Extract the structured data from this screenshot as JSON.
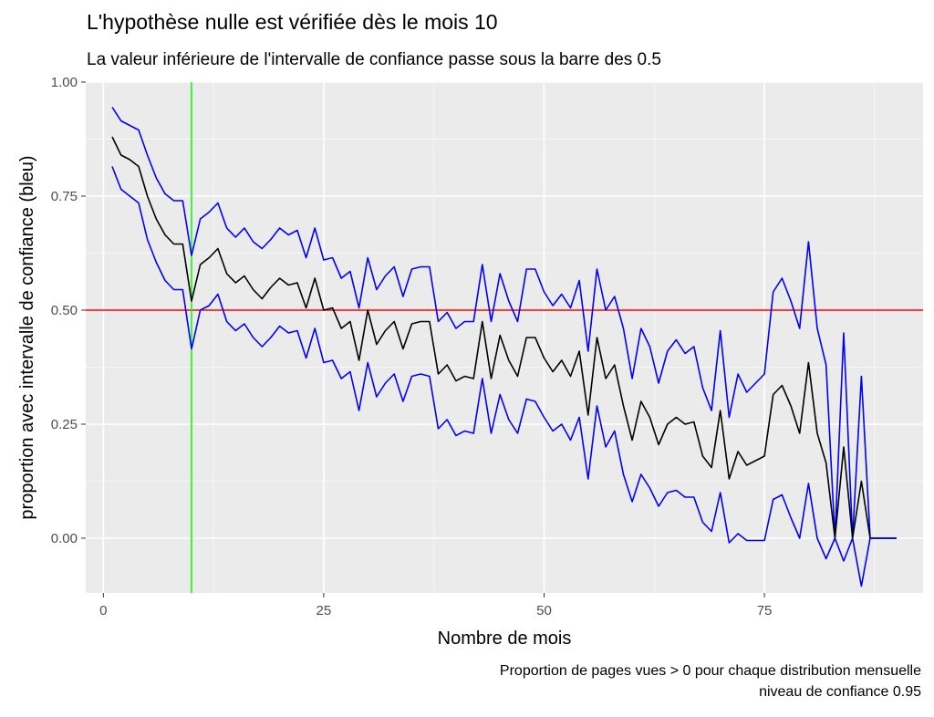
{
  "chart_data": {
    "type": "line",
    "title": "L'hypothèse nulle est vérifiée dès le mois  10",
    "subtitle": "La valeur inférieure de l'intervalle de confiance passe sous la barre des 0.5",
    "xlabel": "Nombre de mois",
    "ylabel": "proportion avec intervalle de confiance (bleu)",
    "caption_lines": [
      "Proportion de pages vues > 0 pour chaque distribution mensuelle",
      "niveau de confiance  0.95"
    ],
    "xlim": [
      -2,
      93
    ],
    "ylim": [
      -0.12,
      1.0
    ],
    "x_ticks": [
      0,
      25,
      50,
      75
    ],
    "x_tick_labels": [
      "0",
      "25",
      "50",
      "75"
    ],
    "y_ticks": [
      0,
      0.25,
      0.5,
      0.75,
      1.0
    ],
    "y_tick_labels": [
      "0.00",
      "0.25",
      "0.50",
      "0.75",
      "1.00"
    ],
    "grid": true,
    "hline": {
      "y": 0.5,
      "color": "#ff0000"
    },
    "vline": {
      "x": 10,
      "color": "#00ff00"
    },
    "series": [
      {
        "role": "upper",
        "color": "#0000ff",
        "x": [
          1,
          2,
          3,
          4,
          5,
          6,
          7,
          8,
          9,
          10,
          11,
          12,
          13,
          14,
          15,
          16,
          17,
          18,
          19,
          20,
          21,
          22,
          23,
          24,
          25,
          26,
          27,
          28,
          29,
          30,
          31,
          32,
          33,
          34,
          35,
          36,
          37,
          38,
          39,
          40,
          41,
          42,
          43,
          44,
          45,
          46,
          47,
          48,
          49,
          50,
          51,
          52,
          53,
          54,
          55,
          56,
          57,
          58,
          59,
          60,
          61,
          62,
          63,
          64,
          65,
          66,
          67,
          68,
          69,
          70,
          71,
          72,
          73,
          74,
          75,
          76,
          77,
          78,
          79,
          80,
          81,
          82,
          83,
          84,
          85,
          86,
          87,
          88,
          89,
          90
        ],
        "y": [
          0.945,
          0.915,
          0.905,
          0.895,
          0.84,
          0.79,
          0.755,
          0.74,
          0.74,
          0.62,
          0.7,
          0.715,
          0.735,
          0.68,
          0.66,
          0.68,
          0.65,
          0.635,
          0.655,
          0.68,
          0.665,
          0.675,
          0.615,
          0.68,
          0.61,
          0.615,
          0.57,
          0.585,
          0.505,
          0.615,
          0.545,
          0.575,
          0.595,
          0.53,
          0.59,
          0.595,
          0.595,
          0.475,
          0.495,
          0.46,
          0.475,
          0.475,
          0.6,
          0.475,
          0.58,
          0.52,
          0.475,
          0.59,
          0.59,
          0.54,
          0.51,
          0.535,
          0.505,
          0.565,
          0.41,
          0.59,
          0.5,
          0.53,
          0.46,
          0.35,
          0.46,
          0.42,
          0.34,
          0.41,
          0.435,
          0.405,
          0.42,
          0.33,
          0.28,
          0.455,
          0.265,
          0.36,
          0.32,
          0.34,
          0.36,
          0.54,
          0.57,
          0.52,
          0.46,
          0.65,
          0.46,
          0.38,
          0.0,
          0.45,
          0.0,
          0.355,
          0.0,
          0.0,
          0.0,
          0.0
        ]
      },
      {
        "role": "proportion",
        "color": "#000000",
        "x": [
          1,
          2,
          3,
          4,
          5,
          6,
          7,
          8,
          9,
          10,
          11,
          12,
          13,
          14,
          15,
          16,
          17,
          18,
          19,
          20,
          21,
          22,
          23,
          24,
          25,
          26,
          27,
          28,
          29,
          30,
          31,
          32,
          33,
          34,
          35,
          36,
          37,
          38,
          39,
          40,
          41,
          42,
          43,
          44,
          45,
          46,
          47,
          48,
          49,
          50,
          51,
          52,
          53,
          54,
          55,
          56,
          57,
          58,
          59,
          60,
          61,
          62,
          63,
          64,
          65,
          66,
          67,
          68,
          69,
          70,
          71,
          72,
          73,
          74,
          75,
          76,
          77,
          78,
          79,
          80,
          81,
          82,
          83,
          84,
          85,
          86,
          87,
          88,
          89,
          90
        ],
        "y": [
          0.88,
          0.84,
          0.83,
          0.815,
          0.75,
          0.7,
          0.665,
          0.645,
          0.645,
          0.52,
          0.6,
          0.615,
          0.635,
          0.58,
          0.56,
          0.575,
          0.545,
          0.525,
          0.55,
          0.57,
          0.555,
          0.56,
          0.505,
          0.57,
          0.5,
          0.505,
          0.46,
          0.475,
          0.39,
          0.5,
          0.425,
          0.455,
          0.475,
          0.415,
          0.47,
          0.475,
          0.475,
          0.36,
          0.38,
          0.345,
          0.355,
          0.35,
          0.475,
          0.35,
          0.445,
          0.39,
          0.355,
          0.44,
          0.44,
          0.395,
          0.365,
          0.39,
          0.355,
          0.41,
          0.27,
          0.44,
          0.35,
          0.38,
          0.29,
          0.215,
          0.3,
          0.265,
          0.205,
          0.25,
          0.265,
          0.25,
          0.255,
          0.18,
          0.155,
          0.28,
          0.13,
          0.19,
          0.16,
          0.17,
          0.18,
          0.315,
          0.335,
          0.29,
          0.23,
          0.385,
          0.23,
          0.165,
          0.0,
          0.2,
          0.0,
          0.125,
          0.0,
          0.0,
          0.0,
          0.0
        ]
      },
      {
        "role": "lower",
        "color": "#0000ff",
        "x": [
          1,
          2,
          3,
          4,
          5,
          6,
          7,
          8,
          9,
          10,
          11,
          12,
          13,
          14,
          15,
          16,
          17,
          18,
          19,
          20,
          21,
          22,
          23,
          24,
          25,
          26,
          27,
          28,
          29,
          30,
          31,
          32,
          33,
          34,
          35,
          36,
          37,
          38,
          39,
          40,
          41,
          42,
          43,
          44,
          45,
          46,
          47,
          48,
          49,
          50,
          51,
          52,
          53,
          54,
          55,
          56,
          57,
          58,
          59,
          60,
          61,
          62,
          63,
          64,
          65,
          66,
          67,
          68,
          69,
          70,
          71,
          72,
          73,
          74,
          75,
          76,
          77,
          78,
          79,
          80,
          81,
          82,
          83,
          84,
          85,
          86,
          87,
          88,
          89,
          90
        ],
        "y": [
          0.815,
          0.765,
          0.75,
          0.735,
          0.655,
          0.605,
          0.565,
          0.545,
          0.545,
          0.415,
          0.5,
          0.51,
          0.535,
          0.475,
          0.455,
          0.47,
          0.44,
          0.42,
          0.44,
          0.465,
          0.45,
          0.455,
          0.395,
          0.46,
          0.385,
          0.39,
          0.35,
          0.365,
          0.28,
          0.385,
          0.31,
          0.34,
          0.36,
          0.3,
          0.355,
          0.36,
          0.355,
          0.24,
          0.26,
          0.225,
          0.235,
          0.23,
          0.35,
          0.23,
          0.315,
          0.26,
          0.23,
          0.305,
          0.3,
          0.265,
          0.235,
          0.25,
          0.215,
          0.265,
          0.13,
          0.29,
          0.2,
          0.235,
          0.14,
          0.08,
          0.14,
          0.11,
          0.07,
          0.1,
          0.105,
          0.09,
          0.09,
          0.035,
          0.015,
          0.1,
          -0.01,
          0.01,
          -0.005,
          -0.005,
          -0.005,
          0.085,
          0.095,
          0.045,
          0.0,
          0.12,
          0.0,
          -0.045,
          0.0,
          -0.05,
          0.0,
          -0.105,
          0.0,
          0.0,
          0.0,
          0.0
        ]
      }
    ]
  }
}
